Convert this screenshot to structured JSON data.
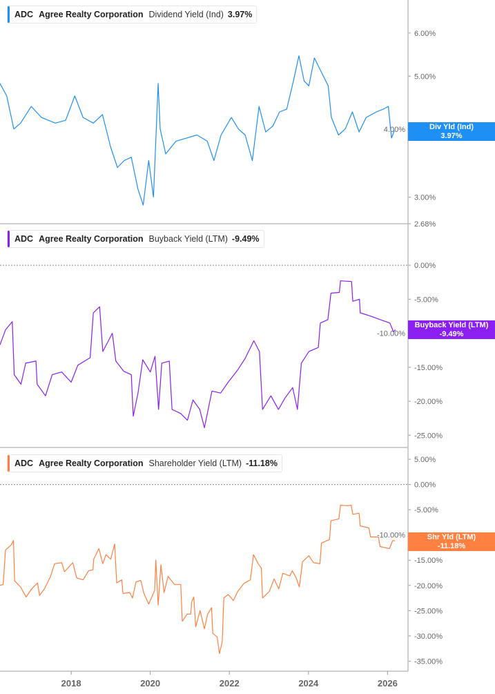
{
  "colors": {
    "dividend": "#1e8ff5",
    "buyback": "#8b1ef0",
    "shareholder": "#ff8040",
    "axis": "#bdbdbd",
    "tick_text": "#666666"
  },
  "chart_data": [
    {
      "type": "line",
      "legend": {
        "ticker": "ADC",
        "company": "Agree Realty Corporation",
        "metric": "Dividend Yield (Ind)",
        "value": "3.97%"
      },
      "tag": {
        "label": "Div Yld (Ind)",
        "value": "3.97%"
      },
      "yscale": "log",
      "ylim": [
        2.68,
        6.9
      ],
      "yticks": [
        "6.00%",
        "5.00%",
        "4.00%",
        "3.00%",
        "2.68%"
      ],
      "ytick_values": [
        6,
        5,
        4,
        3,
        2.68
      ],
      "zero_line": false,
      "points": [
        [
          2016.2,
          4.85
        ],
        [
          2016.37,
          4.6
        ],
        [
          2016.55,
          4.0
        ],
        [
          2016.72,
          4.1
        ],
        [
          2016.99,
          4.4
        ],
        [
          2017.25,
          4.2
        ],
        [
          2017.6,
          4.1
        ],
        [
          2017.86,
          4.15
        ],
        [
          2018.09,
          4.6
        ],
        [
          2018.3,
          4.2
        ],
        [
          2018.56,
          4.1
        ],
        [
          2018.79,
          4.25
        ],
        [
          2019.0,
          3.7
        ],
        [
          2019.17,
          3.4
        ],
        [
          2019.34,
          3.5
        ],
        [
          2019.52,
          3.55
        ],
        [
          2019.69,
          3.1
        ],
        [
          2019.82,
          2.9
        ],
        [
          2019.96,
          3.5
        ],
        [
          2020.08,
          3.0
        ],
        [
          2020.2,
          4.85
        ],
        [
          2020.25,
          4.0
        ],
        [
          2020.39,
          3.6
        ],
        [
          2020.65,
          3.8
        ],
        [
          2020.92,
          3.85
        ],
        [
          2021.18,
          3.9
        ],
        [
          2021.44,
          3.8
        ],
        [
          2021.61,
          3.5
        ],
        [
          2021.79,
          3.9
        ],
        [
          2022.05,
          4.2
        ],
        [
          2022.23,
          4.0
        ],
        [
          2022.4,
          3.9
        ],
        [
          2022.58,
          3.5
        ],
        [
          2022.75,
          4.4
        ],
        [
          2022.92,
          3.95
        ],
        [
          2023.1,
          4.05
        ],
        [
          2023.27,
          4.3
        ],
        [
          2023.45,
          4.35
        ],
        [
          2023.62,
          4.9
        ],
        [
          2023.76,
          5.45
        ],
        [
          2023.89,
          4.9
        ],
        [
          2024.01,
          4.8
        ],
        [
          2024.15,
          5.4
        ],
        [
          2024.32,
          5.1
        ],
        [
          2024.5,
          4.8
        ],
        [
          2024.58,
          4.2
        ],
        [
          2024.76,
          3.9
        ],
        [
          2024.93,
          4.0
        ],
        [
          2025.11,
          4.3
        ],
        [
          2025.28,
          3.95
        ],
        [
          2025.46,
          4.2
        ],
        [
          2025.72,
          4.3
        ],
        [
          2025.89,
          4.35
        ],
        [
          2026.02,
          4.4
        ],
        [
          2026.1,
          3.85
        ],
        [
          2026.17,
          3.97
        ]
      ]
    },
    {
      "type": "line",
      "legend": {
        "ticker": "ADC",
        "company": "Agree Realty Corporation",
        "metric": "Buyback Yield (LTM)",
        "value": "-9.49%"
      },
      "tag": {
        "label": "Buyback Yield (LTM)",
        "value": "-9.49%"
      },
      "yscale": "linear",
      "ylim": [
        -26.8,
        6
      ],
      "yticks": [
        "0.00%",
        "-5.00%",
        "-10.00%",
        "-15.00%",
        "-20.00%",
        "-25.00%"
      ],
      "ytick_values": [
        0,
        -5,
        -10,
        -15,
        -20,
        -25
      ],
      "zero_line": true,
      "points": [
        [
          2016.2,
          -11.7
        ],
        [
          2016.34,
          -9.5
        ],
        [
          2016.51,
          -8.3
        ],
        [
          2016.56,
          -16.1
        ],
        [
          2016.73,
          -17.5
        ],
        [
          2016.85,
          -14.4
        ],
        [
          2017.11,
          -14.1
        ],
        [
          2017.14,
          -17.5
        ],
        [
          2017.35,
          -19.2
        ],
        [
          2017.52,
          -16.1
        ],
        [
          2017.76,
          -15.7
        ],
        [
          2018.0,
          -17.2
        ],
        [
          2018.17,
          -14.7
        ],
        [
          2018.48,
          -13.6
        ],
        [
          2018.56,
          -7.0
        ],
        [
          2018.72,
          -6.1
        ],
        [
          2018.8,
          -12.7
        ],
        [
          2019.04,
          -10.0
        ],
        [
          2019.13,
          -14.1
        ],
        [
          2019.33,
          -15.6
        ],
        [
          2019.52,
          -16.1
        ],
        [
          2019.57,
          -22.2
        ],
        [
          2019.69,
          -18.8
        ],
        [
          2019.81,
          -13.9
        ],
        [
          2020.0,
          -15.7
        ],
        [
          2020.12,
          -13.4
        ],
        [
          2020.21,
          -21.2
        ],
        [
          2020.29,
          -14.4
        ],
        [
          2020.48,
          -14.1
        ],
        [
          2020.55,
          -21.2
        ],
        [
          2020.77,
          -21.8
        ],
        [
          2020.94,
          -22.8
        ],
        [
          2021.08,
          -19.8
        ],
        [
          2021.25,
          -21.2
        ],
        [
          2021.37,
          -23.9
        ],
        [
          2021.56,
          -18.5
        ],
        [
          2021.78,
          -18.8
        ],
        [
          2021.97,
          -17.2
        ],
        [
          2022.21,
          -15.4
        ],
        [
          2022.4,
          -13.7
        ],
        [
          2022.62,
          -11.1
        ],
        [
          2022.76,
          -12.7
        ],
        [
          2022.84,
          -21.2
        ],
        [
          2023.05,
          -19.2
        ],
        [
          2023.24,
          -21.2
        ],
        [
          2023.41,
          -19.5
        ],
        [
          2023.6,
          -18.0
        ],
        [
          2023.72,
          -21.2
        ],
        [
          2023.82,
          -14.4
        ],
        [
          2024.01,
          -12.7
        ],
        [
          2024.25,
          -12.1
        ],
        [
          2024.3,
          -8.5
        ],
        [
          2024.49,
          -8.0
        ],
        [
          2024.57,
          -4.1
        ],
        [
          2024.78,
          -4.0
        ],
        [
          2024.81,
          -2.3
        ],
        [
          2025.09,
          -2.4
        ],
        [
          2025.12,
          -5.3
        ],
        [
          2025.29,
          -5.0
        ],
        [
          2025.31,
          -7.0
        ],
        [
          2025.58,
          -7.5
        ],
        [
          2025.82,
          -8.0
        ],
        [
          2026.06,
          -8.5
        ],
        [
          2026.15,
          -9.8
        ],
        [
          2026.2,
          -9.49
        ]
      ]
    },
    {
      "type": "line",
      "legend": {
        "ticker": "ADC",
        "company": "Agree Realty Corporation",
        "metric": "Shareholder Yield (LTM)",
        "value": "-11.18%"
      },
      "tag": {
        "label": "Shr Yld (LTM)",
        "value": "-11.18%"
      },
      "yscale": "linear",
      "ylim": [
        -37,
        7.2
      ],
      "yticks": [
        "5.00%",
        "0.00%",
        "-5.00%",
        "-10.00%",
        "-15.00%",
        "-20.00%",
        "-25.00%",
        "-30.00%",
        "-35.00%"
      ],
      "ytick_values": [
        5,
        0,
        -5,
        -10,
        -15,
        -20,
        -25,
        -30,
        -35
      ],
      "zero_line": true,
      "points": [
        [
          2016.2,
          -20.0
        ],
        [
          2016.28,
          -19.8
        ],
        [
          2016.34,
          -13.0
        ],
        [
          2016.48,
          -12.0
        ],
        [
          2016.54,
          -11.1
        ],
        [
          2016.57,
          -19.1
        ],
        [
          2016.72,
          -20.3
        ],
        [
          2016.86,
          -22.3
        ],
        [
          2017.0,
          -20.7
        ],
        [
          2017.15,
          -19.5
        ],
        [
          2017.2,
          -22.0
        ],
        [
          2017.32,
          -20.7
        ],
        [
          2017.48,
          -18.2
        ],
        [
          2017.58,
          -15.7
        ],
        [
          2017.76,
          -15.5
        ],
        [
          2017.83,
          -17.3
        ],
        [
          2018.04,
          -15.5
        ],
        [
          2018.14,
          -18.5
        ],
        [
          2018.3,
          -18.9
        ],
        [
          2018.44,
          -17.1
        ],
        [
          2018.55,
          -16.9
        ],
        [
          2018.57,
          -14.8
        ],
        [
          2018.7,
          -12.7
        ],
        [
          2018.8,
          -15.7
        ],
        [
          2018.88,
          -13.9
        ],
        [
          2019.0,
          -14.8
        ],
        [
          2019.1,
          -11.8
        ],
        [
          2019.15,
          -19.5
        ],
        [
          2019.28,
          -18.9
        ],
        [
          2019.31,
          -21.6
        ],
        [
          2019.48,
          -21.4
        ],
        [
          2019.55,
          -22.5
        ],
        [
          2019.64,
          -19.3
        ],
        [
          2019.76,
          -19.0
        ],
        [
          2019.84,
          -21.6
        ],
        [
          2019.96,
          -23.7
        ],
        [
          2020.11,
          -21.0
        ],
        [
          2020.14,
          -15.0
        ],
        [
          2020.2,
          -23.9
        ],
        [
          2020.27,
          -15.9
        ],
        [
          2020.35,
          -21.4
        ],
        [
          2020.45,
          -18.2
        ],
        [
          2020.61,
          -19.8
        ],
        [
          2020.77,
          -19.8
        ],
        [
          2020.81,
          -27.1
        ],
        [
          2020.93,
          -25.7
        ],
        [
          2021.02,
          -25.7
        ],
        [
          2021.05,
          -23.2
        ],
        [
          2021.1,
          -22.3
        ],
        [
          2021.15,
          -28.2
        ],
        [
          2021.26,
          -25.0
        ],
        [
          2021.37,
          -28.6
        ],
        [
          2021.45,
          -25.7
        ],
        [
          2021.55,
          -24.4
        ],
        [
          2021.58,
          -29.5
        ],
        [
          2021.69,
          -30.2
        ],
        [
          2021.75,
          -33.5
        ],
        [
          2021.82,
          -31.2
        ],
        [
          2021.86,
          -22.5
        ],
        [
          2021.97,
          -21.8
        ],
        [
          2022.1,
          -23.0
        ],
        [
          2022.21,
          -21.2
        ],
        [
          2022.37,
          -19.6
        ],
        [
          2022.53,
          -18.9
        ],
        [
          2022.61,
          -13.9
        ],
        [
          2022.73,
          -15.7
        ],
        [
          2022.81,
          -16.6
        ],
        [
          2022.84,
          -22.5
        ],
        [
          2023.01,
          -21.2
        ],
        [
          2023.13,
          -18.7
        ],
        [
          2023.25,
          -20.7
        ],
        [
          2023.35,
          -17.6
        ],
        [
          2023.53,
          -18.1
        ],
        [
          2023.59,
          -17.1
        ],
        [
          2023.69,
          -18.5
        ],
        [
          2023.77,
          -20.3
        ],
        [
          2023.85,
          -15.3
        ],
        [
          2024.01,
          -14.1
        ],
        [
          2024.13,
          -15.5
        ],
        [
          2024.29,
          -15.7
        ],
        [
          2024.33,
          -11.6
        ],
        [
          2024.53,
          -10.9
        ],
        [
          2024.57,
          -7.2
        ],
        [
          2024.77,
          -6.8
        ],
        [
          2024.81,
          -4.1
        ],
        [
          2024.97,
          -4.2
        ],
        [
          2025.08,
          -4.1
        ],
        [
          2025.12,
          -5.9
        ],
        [
          2025.28,
          -5.7
        ],
        [
          2025.31,
          -8.2
        ],
        [
          2025.53,
          -8.6
        ],
        [
          2025.57,
          -10.4
        ],
        [
          2025.77,
          -10.4
        ],
        [
          2025.81,
          -12.3
        ],
        [
          2026.05,
          -12.7
        ],
        [
          2026.13,
          -11.1
        ],
        [
          2026.19,
          -11.18
        ]
      ]
    }
  ],
  "xaxis": {
    "ticks": [
      "2018",
      "2020",
      "2022",
      "2024",
      "2026"
    ],
    "tick_values": [
      2018,
      2020,
      2022,
      2024,
      2026
    ],
    "xlim": [
      2016.2,
      2026.5
    ]
  }
}
